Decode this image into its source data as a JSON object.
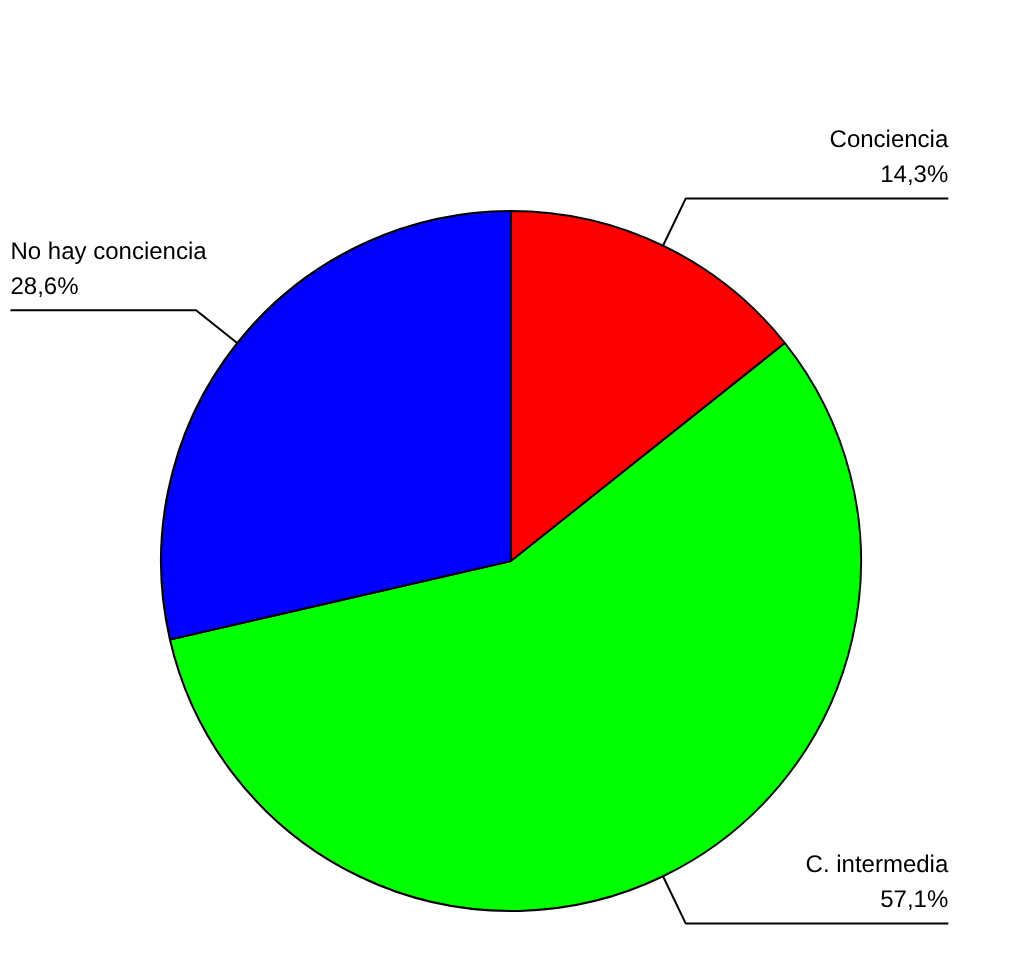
{
  "chart_data": {
    "type": "pie",
    "categories": [
      "Conciencia",
      "C. intermedia",
      "No hay conciencia"
    ],
    "values": [
      14.3,
      57.1,
      28.6
    ],
    "colors": [
      "#ff0000",
      "#00ff00",
      "#0000ff"
    ],
    "value_labels": [
      "14,3%",
      "57,1%",
      "28,6%"
    ]
  }
}
